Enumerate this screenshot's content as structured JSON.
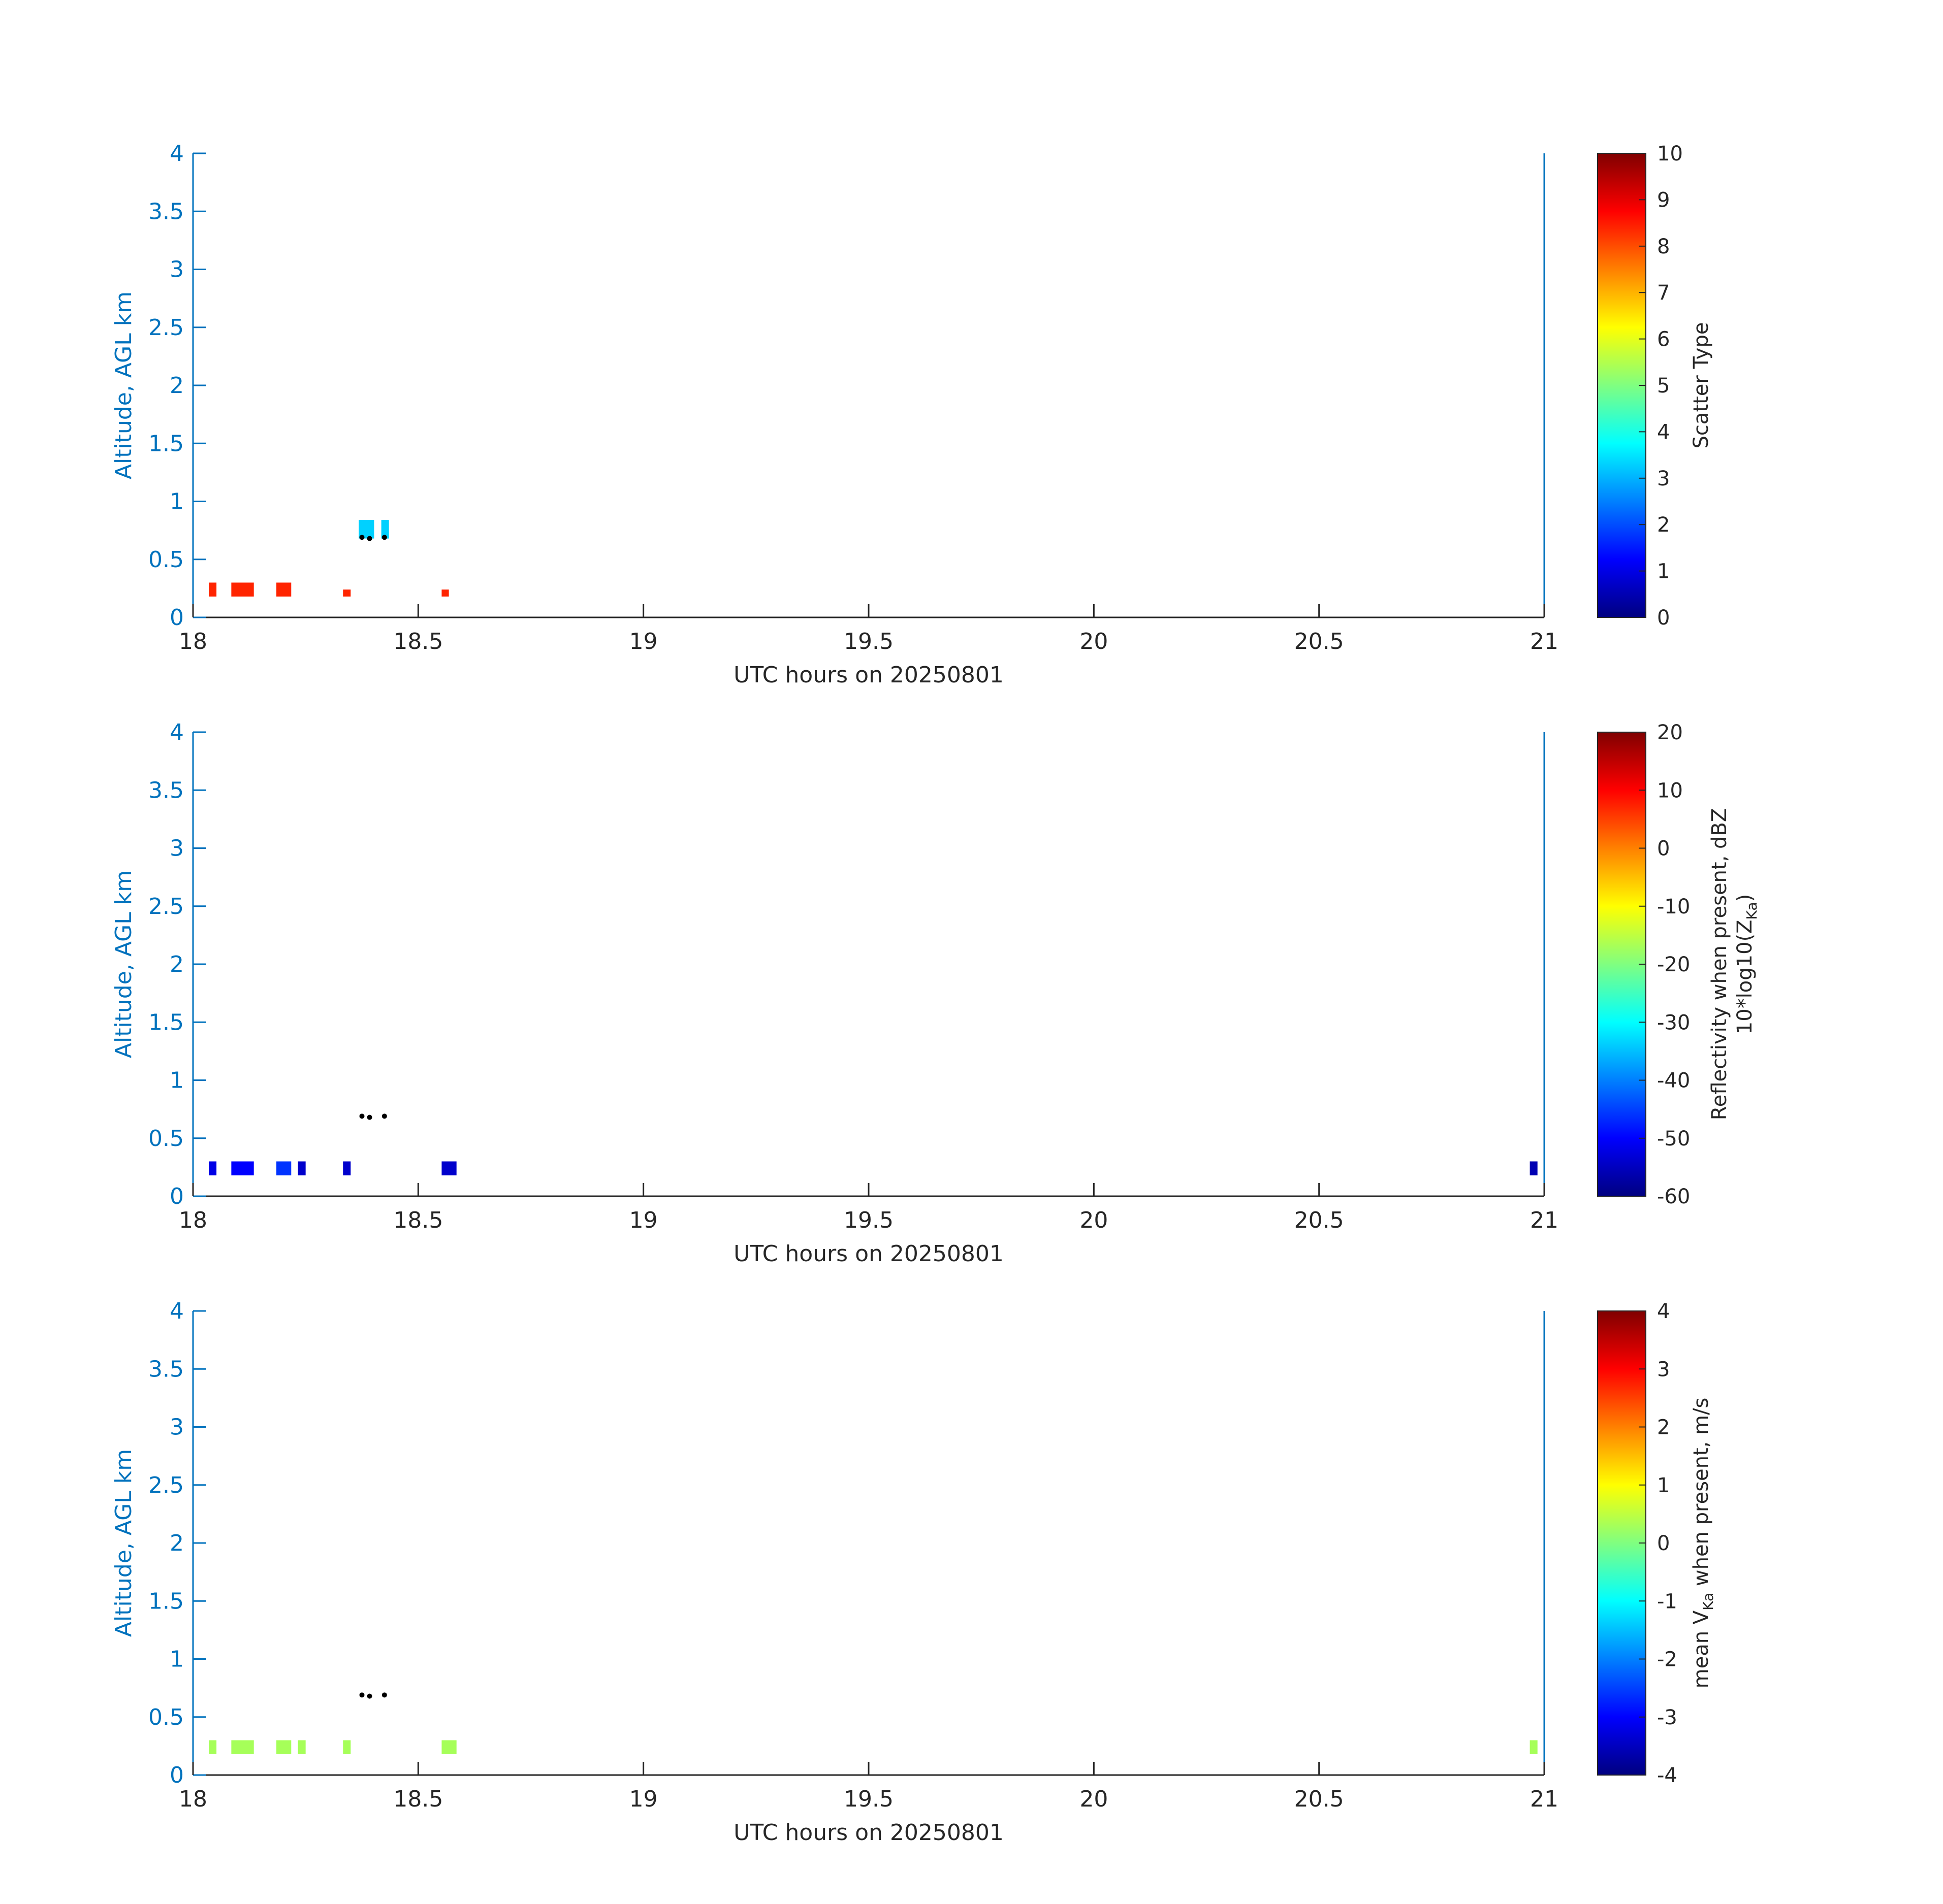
{
  "chart_data": [
    {
      "type": "heatmap",
      "xlabel": "UTC hours on 20250801",
      "ylabel": "Altitude, AGL km",
      "xlim": [
        18,
        21
      ],
      "ylim": [
        0,
        4
      ],
      "xticks": [
        "18",
        "18.5",
        "19",
        "19.5",
        "20",
        "20.5",
        "21"
      ],
      "yticks": [
        "0",
        "0.5",
        "1",
        "1.5",
        "2",
        "2.5",
        "3",
        "3.5",
        "4"
      ],
      "colorbar": {
        "label": "Scatter Type",
        "label2": "",
        "range": [
          0,
          10
        ],
        "ticks": [
          "0",
          "1",
          "2",
          "3",
          "4",
          "5",
          "6",
          "7",
          "8",
          "9",
          "10"
        ]
      },
      "cells": [
        {
          "x0": 18.035,
          "x1": 18.052,
          "y0": 0.18,
          "y1": 0.3,
          "value": 8.4
        },
        {
          "x0": 18.085,
          "x1": 18.135,
          "y0": 0.18,
          "y1": 0.3,
          "value": 8.4
        },
        {
          "x0": 18.185,
          "x1": 18.218,
          "y0": 0.18,
          "y1": 0.3,
          "value": 8.4
        },
        {
          "x0": 18.333,
          "x1": 18.35,
          "y0": 0.18,
          "y1": 0.24,
          "value": 8.4
        },
        {
          "x0": 18.552,
          "x1": 18.568,
          "y0": 0.18,
          "y1": 0.24,
          "value": 8.4
        },
        {
          "x0": 18.368,
          "x1": 18.402,
          "y0": 0.68,
          "y1": 0.84,
          "value": 3.3
        },
        {
          "x0": 18.418,
          "x1": 18.435,
          "y0": 0.68,
          "y1": 0.84,
          "value": 3.3
        }
      ],
      "markers": [
        {
          "x": 18.375,
          "y": 0.69
        },
        {
          "x": 18.392,
          "y": 0.68
        },
        {
          "x": 18.425,
          "y": 0.69
        }
      ]
    },
    {
      "type": "heatmap",
      "xlabel": "UTC hours on 20250801",
      "ylabel": "Altitude, AGL km",
      "xlim": [
        18,
        21
      ],
      "ylim": [
        0,
        4
      ],
      "xticks": [
        "18",
        "18.5",
        "19",
        "19.5",
        "20",
        "20.5",
        "21"
      ],
      "yticks": [
        "0",
        "0.5",
        "1",
        "1.5",
        "2",
        "2.5",
        "3",
        "3.5",
        "4"
      ],
      "colorbar": {
        "label": "Reflectivity when present, dBZ",
        "label2": "10*log10(Z",
        "label2_sub": "Ka",
        "label2_end": ")",
        "range": [
          -60,
          20
        ],
        "ticks": [
          "-60",
          "-50",
          "-40",
          "-30",
          "-20",
          "-10",
          "0",
          "10",
          "20"
        ]
      },
      "cells": [
        {
          "x0": 18.035,
          "x1": 18.052,
          "y0": 0.18,
          "y1": 0.3,
          "value": -52
        },
        {
          "x0": 18.085,
          "x1": 18.135,
          "y0": 0.18,
          "y1": 0.3,
          "value": -50
        },
        {
          "x0": 18.185,
          "x1": 18.218,
          "y0": 0.18,
          "y1": 0.3,
          "value": -46
        },
        {
          "x0": 18.233,
          "x1": 18.25,
          "y0": 0.18,
          "y1": 0.3,
          "value": -54
        },
        {
          "x0": 18.333,
          "x1": 18.35,
          "y0": 0.18,
          "y1": 0.3,
          "value": -54
        },
        {
          "x0": 18.552,
          "x1": 18.585,
          "y0": 0.18,
          "y1": 0.3,
          "value": -54
        },
        {
          "x0": 20.968,
          "x1": 20.985,
          "y0": 0.18,
          "y1": 0.3,
          "value": -56
        }
      ],
      "markers": [
        {
          "x": 18.375,
          "y": 0.69
        },
        {
          "x": 18.392,
          "y": 0.68
        },
        {
          "x": 18.425,
          "y": 0.69
        }
      ]
    },
    {
      "type": "heatmap",
      "xlabel": "UTC hours on 20250801",
      "ylabel": "Altitude, AGL km",
      "xlim": [
        18,
        21
      ],
      "ylim": [
        0,
        4
      ],
      "xticks": [
        "18",
        "18.5",
        "19",
        "19.5",
        "20",
        "20.5",
        "21"
      ],
      "yticks": [
        "0",
        "0.5",
        "1",
        "1.5",
        "2",
        "2.5",
        "3",
        "3.5",
        "4"
      ],
      "colorbar": {
        "label": "mean V",
        "label_sub": "Ka",
        "label_end": " when present, m/s",
        "range": [
          -4,
          4
        ],
        "ticks": [
          "-4",
          "-3",
          "-2",
          "-1",
          "0",
          "1",
          "2",
          "3",
          "4"
        ]
      },
      "cells": [
        {
          "x0": 18.035,
          "x1": 18.052,
          "y0": 0.18,
          "y1": 0.3,
          "value": 0.3
        },
        {
          "x0": 18.085,
          "x1": 18.135,
          "y0": 0.18,
          "y1": 0.3,
          "value": 0.3
        },
        {
          "x0": 18.185,
          "x1": 18.218,
          "y0": 0.18,
          "y1": 0.3,
          "value": 0.3
        },
        {
          "x0": 18.233,
          "x1": 18.25,
          "y0": 0.18,
          "y1": 0.3,
          "value": 0.3
        },
        {
          "x0": 18.333,
          "x1": 18.35,
          "y0": 0.18,
          "y1": 0.3,
          "value": 0.3
        },
        {
          "x0": 18.552,
          "x1": 18.585,
          "y0": 0.18,
          "y1": 0.3,
          "value": 0.3
        },
        {
          "x0": 20.968,
          "x1": 20.985,
          "y0": 0.18,
          "y1": 0.3,
          "value": 0.3
        }
      ],
      "markers": [
        {
          "x": 18.375,
          "y": 0.69
        },
        {
          "x": 18.392,
          "y": 0.68
        },
        {
          "x": 18.425,
          "y": 0.69
        }
      ]
    }
  ],
  "colors": {
    "axis_left": "#0072bd",
    "axis_bottom": "#262626",
    "marker": "#000000",
    "colormap": "jet"
  }
}
